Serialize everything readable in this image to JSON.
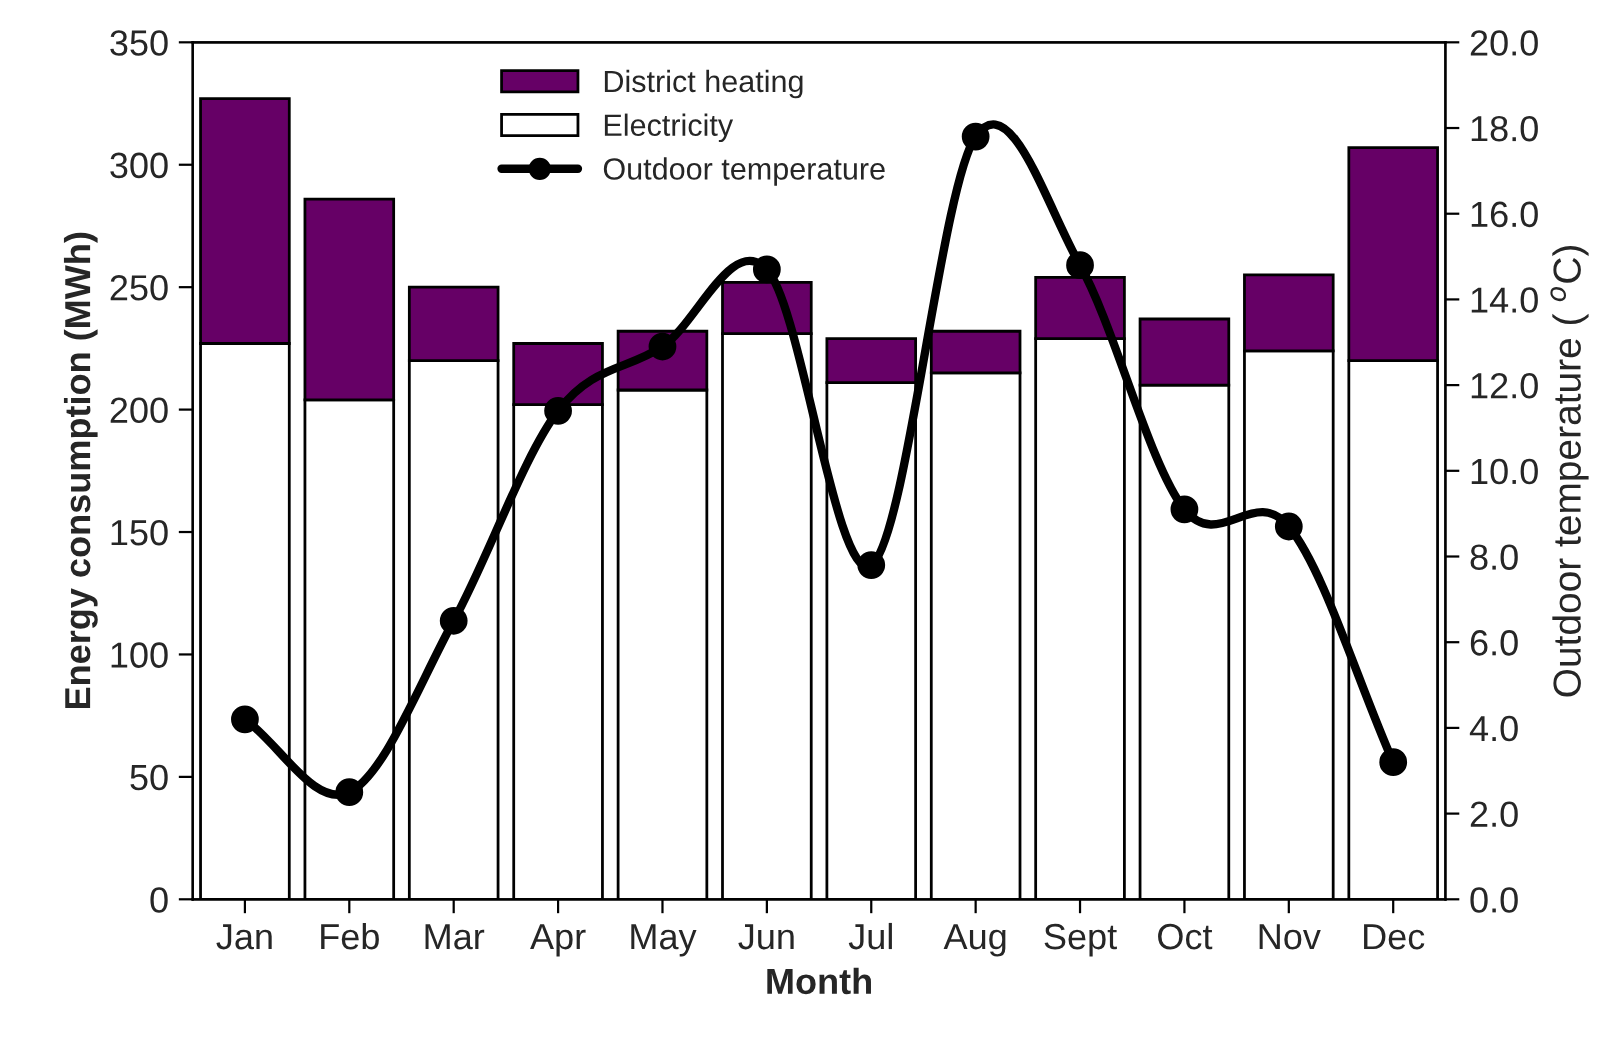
{
  "chart_data": {
    "type": "bar",
    "stacked": true,
    "xlabel": "Month",
    "ylabel": "Energy consumption (MWh)",
    "y2label": "Outdoor temperature ( $^{o}$C)",
    "categories": [
      "Jan",
      "Feb",
      "Mar",
      "Apr",
      "May",
      "Jun",
      "Jul",
      "Aug",
      "Sept",
      "Oct",
      "Nov",
      "Dec"
    ],
    "series": [
      {
        "name": "Electricity",
        "color": "#ffffff",
        "values": [
          227,
          204,
          220,
          202,
          208,
          231,
          211,
          215,
          229,
          210,
          224,
          220
        ]
      },
      {
        "name": "District heating",
        "color": "#660066",
        "values": [
          100,
          82,
          30,
          25,
          24,
          21,
          18,
          17,
          25,
          27,
          31,
          87
        ]
      },
      {
        "name": "Outdoor temperature",
        "type": "line",
        "axis": "y2",
        "color": "#000000",
        "marker": "circle",
        "line_style": "solid",
        "values": [
          4.2,
          2.5,
          6.5,
          11.4,
          12.9,
          14.7,
          7.8,
          17.8,
          14.8,
          9.1,
          8.7,
          3.2
        ]
      }
    ],
    "ylim": [
      0,
      350
    ],
    "yticks": [
      0,
      50,
      100,
      150,
      200,
      250,
      300,
      350
    ],
    "y2lim": [
      0,
      20
    ],
    "y2ticks": [
      {
        "value": 0,
        "label": "0.0"
      },
      {
        "value": 2,
        "label": "2.0"
      },
      {
        "value": 4,
        "label": "4.0"
      },
      {
        "value": 6,
        "label": "6.0"
      },
      {
        "value": 8,
        "label": "8.0"
      },
      {
        "value": 10,
        "label": "10.0"
      },
      {
        "value": 12,
        "label": "12.0"
      },
      {
        "value": 14,
        "label": "14.0"
      },
      {
        "value": 16,
        "label": "16.0"
      },
      {
        "value": 18,
        "label": "18.0"
      },
      {
        "value": 20,
        "label": "20.0"
      }
    ],
    "grid": false,
    "legend": "top"
  }
}
